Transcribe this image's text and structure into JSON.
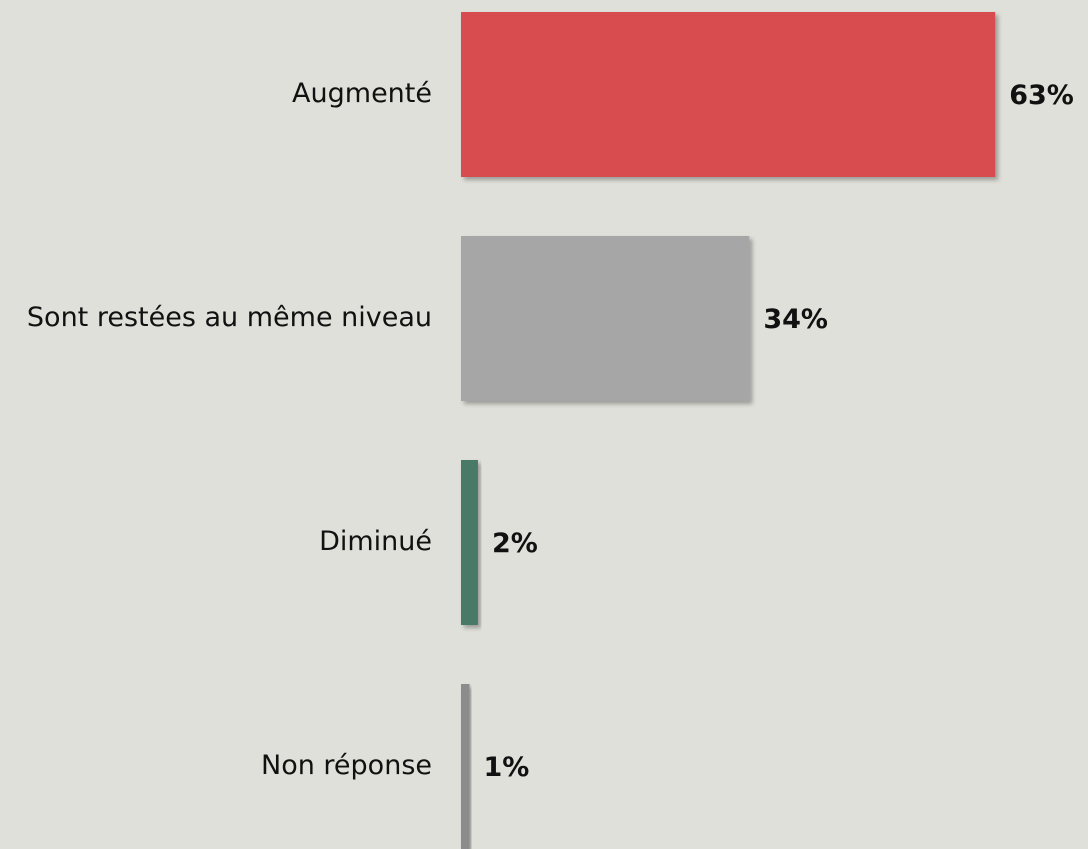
{
  "chart_data": {
    "type": "bar",
    "orientation": "horizontal",
    "categories": [
      "Augmenté",
      "Sont restées au même niveau",
      "Diminué",
      "Non réponse"
    ],
    "values": [
      63,
      34,
      2,
      1
    ],
    "value_labels": [
      "63%",
      "34%",
      "2%",
      "1%"
    ],
    "colors": [
      "#d84b50",
      "#a6a6a6",
      "#4a7a68",
      "#8c8c8c"
    ]
  }
}
